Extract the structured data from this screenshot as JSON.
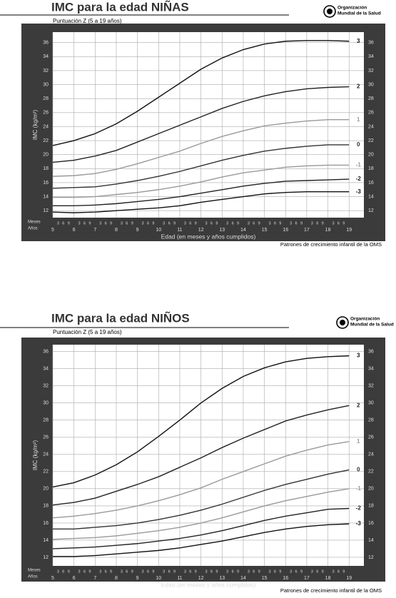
{
  "chart_data": [
    {
      "type": "line",
      "title": "IMC para la edad  NIÑAS",
      "subtitle": "Puntuación Z (5 a 19 años)",
      "y_label": "IMC (kg/m²)",
      "x_label": "Edad (en meses y años cumplidos)",
      "source": "Patrones de crecimiento infantil de la OMS",
      "logo_text": [
        "Organización",
        "Mundial de la Salud"
      ],
      "month_axis_labels": [
        "Meses",
        "Años"
      ],
      "months": [
        3,
        6,
        9
      ],
      "x": [
        5,
        6,
        7,
        8,
        9,
        10,
        11,
        12,
        13,
        14,
        15,
        16,
        17,
        18,
        19
      ],
      "xlim": [
        5,
        19.7
      ],
      "xticks": [
        5,
        6,
        7,
        8,
        9,
        10,
        11,
        12,
        13,
        14,
        15,
        16,
        17,
        18,
        19
      ],
      "ylim": [
        11,
        37.5
      ],
      "yticks": [
        12,
        14,
        16,
        18,
        20,
        22,
        24,
        26,
        28,
        30,
        32,
        34,
        36
      ],
      "grid": true,
      "series": [
        {
          "name": "3",
          "color": "#111111",
          "values": [
            21.3,
            22.0,
            23.0,
            24.4,
            26.2,
            28.2,
            30.2,
            32.2,
            33.8,
            35.0,
            35.8,
            36.2,
            36.3,
            36.3,
            36.2
          ]
        },
        {
          "name": "2",
          "color": "#222222",
          "values": [
            18.9,
            19.2,
            19.8,
            20.6,
            21.8,
            23.0,
            24.2,
            25.4,
            26.6,
            27.6,
            28.4,
            29.0,
            29.4,
            29.6,
            29.7
          ]
        },
        {
          "name": "1",
          "color": "#999999",
          "values": [
            16.9,
            17.0,
            17.3,
            17.9,
            18.7,
            19.6,
            20.5,
            21.6,
            22.6,
            23.4,
            24.1,
            24.5,
            24.8,
            25.0,
            25.0
          ]
        },
        {
          "name": "0",
          "color": "#333333",
          "values": [
            15.2,
            15.3,
            15.4,
            15.8,
            16.3,
            16.9,
            17.6,
            18.4,
            19.2,
            19.9,
            20.5,
            20.9,
            21.2,
            21.4,
            21.4
          ]
        },
        {
          "name": "-1",
          "color": "#999999",
          "values": [
            13.9,
            13.9,
            14.0,
            14.3,
            14.6,
            15.0,
            15.5,
            16.1,
            16.8,
            17.4,
            17.8,
            18.2,
            18.4,
            18.5,
            18.5
          ]
        },
        {
          "name": "-2",
          "color": "#222222",
          "values": [
            12.7,
            12.7,
            12.8,
            13.0,
            13.3,
            13.6,
            14.0,
            14.5,
            15.0,
            15.5,
            15.9,
            16.2,
            16.3,
            16.4,
            16.5
          ]
        },
        {
          "name": "-3",
          "color": "#111111",
          "values": [
            11.8,
            11.7,
            11.8,
            12.0,
            12.2,
            12.4,
            12.7,
            13.2,
            13.6,
            14.0,
            14.4,
            14.6,
            14.7,
            14.7,
            14.7
          ]
        }
      ]
    },
    {
      "type": "line",
      "title": "IMC para la edad  NIÑOS",
      "subtitle": "Puntuación Z (5 a 19 años)",
      "y_label": "IMC (kg/m²)",
      "x_label": "Edad (en meses y años cumplidos)",
      "source": "Patrones de crecimiento infantil de la OMS",
      "logo_text": [
        "Organización",
        "Mundial de la Salud"
      ],
      "month_axis_labels": [
        "Meses",
        "Años"
      ],
      "months": [
        3,
        6,
        9
      ],
      "x": [
        5,
        6,
        7,
        8,
        9,
        10,
        11,
        12,
        13,
        14,
        15,
        16,
        17,
        18,
        19
      ],
      "xlim": [
        5,
        19.7
      ],
      "xticks": [
        5,
        6,
        7,
        8,
        9,
        10,
        11,
        12,
        13,
        14,
        15,
        16,
        17,
        18,
        19
      ],
      "ylim": [
        11,
        36.8
      ],
      "yticks": [
        12,
        14,
        16,
        18,
        20,
        22,
        24,
        26,
        28,
        30,
        32,
        34,
        36
      ],
      "grid": true,
      "series": [
        {
          "name": "3",
          "color": "#111111",
          "values": [
            20.2,
            20.7,
            21.6,
            22.8,
            24.3,
            26.1,
            28.0,
            30.0,
            31.7,
            33.1,
            34.1,
            34.8,
            35.2,
            35.4,
            35.5
          ]
        },
        {
          "name": "2",
          "color": "#222222",
          "values": [
            18.1,
            18.4,
            18.9,
            19.7,
            20.5,
            21.4,
            22.5,
            23.6,
            24.8,
            25.9,
            26.9,
            27.9,
            28.6,
            29.2,
            29.7
          ]
        },
        {
          "name": "1",
          "color": "#999999",
          "values": [
            16.6,
            16.8,
            17.1,
            17.5,
            18.0,
            18.6,
            19.3,
            20.1,
            21.1,
            22.0,
            22.9,
            23.8,
            24.5,
            25.1,
            25.5
          ]
        },
        {
          "name": "0",
          "color": "#333333",
          "values": [
            15.3,
            15.3,
            15.5,
            15.7,
            16.0,
            16.4,
            16.9,
            17.5,
            18.2,
            19.0,
            19.8,
            20.5,
            21.1,
            21.7,
            22.2
          ]
        },
        {
          "name": "-1",
          "color": "#999999",
          "values": [
            14.1,
            14.2,
            14.3,
            14.5,
            14.8,
            15.1,
            15.5,
            16.0,
            16.6,
            17.3,
            18.0,
            18.6,
            19.1,
            19.6,
            20.0
          ]
        },
        {
          "name": "-2",
          "color": "#222222",
          "values": [
            13.0,
            13.1,
            13.2,
            13.4,
            13.6,
            13.9,
            14.2,
            14.6,
            15.1,
            15.7,
            16.3,
            16.8,
            17.2,
            17.6,
            17.7
          ]
        },
        {
          "name": "-3",
          "color": "#111111",
          "values": [
            12.1,
            12.1,
            12.2,
            12.4,
            12.6,
            12.8,
            13.1,
            13.5,
            13.9,
            14.4,
            14.9,
            15.3,
            15.6,
            15.8,
            15.9
          ]
        }
      ]
    }
  ]
}
